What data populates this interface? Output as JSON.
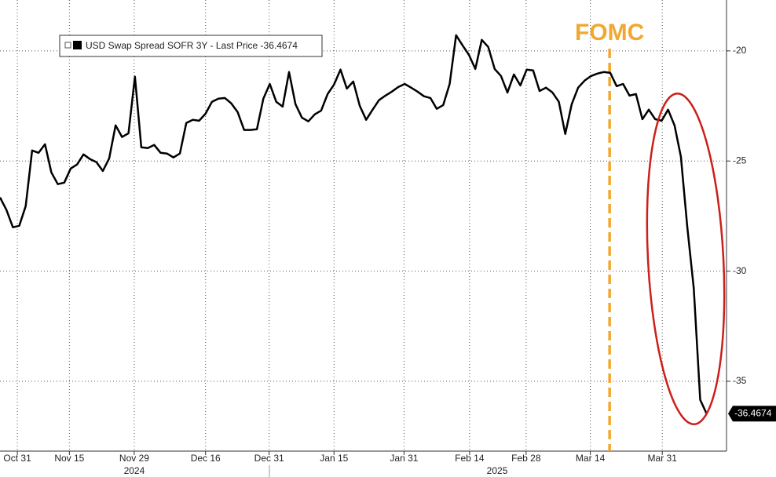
{
  "chart_data": {
    "type": "line",
    "series": [
      {
        "name": "USD Swap Spread SOFR 3Y - Last Price -36.4674",
        "color": "#000000",
        "values": [
          -26.65,
          -27.22,
          -28.01,
          -27.94,
          -27.05,
          -24.52,
          -24.63,
          -24.24,
          -25.52,
          -26.05,
          -25.98,
          -25.34,
          -25.16,
          -24.7,
          -24.91,
          -25.05,
          -25.45,
          -24.88,
          -23.38,
          -23.91,
          -23.74,
          -21.17,
          -24.38,
          -24.41,
          -24.27,
          -24.63,
          -24.66,
          -24.84,
          -24.66,
          -23.27,
          -23.13,
          -23.17,
          -22.85,
          -22.31,
          -22.17,
          -22.14,
          -22.38,
          -22.78,
          -23.59,
          -23.59,
          -23.56,
          -22.17,
          -21.5,
          -22.31,
          -22.53,
          -20.96,
          -22.42,
          -23.03,
          -23.2,
          -22.88,
          -22.71,
          -21.96,
          -21.53,
          -20.85,
          -21.71,
          -21.39,
          -22.49,
          -23.13,
          -22.67,
          -22.24,
          -22.03,
          -21.85,
          -21.64,
          -21.5,
          -21.67,
          -21.85,
          -22.06,
          -22.14,
          -22.63,
          -22.46,
          -21.5,
          -19.29,
          -19.75,
          -20.18,
          -20.82,
          -19.5,
          -19.82,
          -20.82,
          -21.14,
          -21.89,
          -21.07,
          -21.57,
          -20.85,
          -20.89,
          -21.82,
          -21.67,
          -21.89,
          -22.31,
          -23.77,
          -22.42,
          -21.67,
          -21.35,
          -21.14,
          -21.03,
          -20.96,
          -21.0,
          -21.6,
          -21.5,
          -22.03,
          -21.96,
          -23.1,
          -22.67,
          -23.1,
          -23.17,
          -22.67,
          -23.38,
          -24.8,
          -28.01,
          -30.78,
          -35.84,
          -36.4674
        ]
      }
    ],
    "xlim": [
      0,
      113.1
    ],
    "xticks": [
      {
        "value": 2.7,
        "label": "Oct 31"
      },
      {
        "value": 10.8,
        "label": "Nov 15"
      },
      {
        "value": 20.9,
        "label": "Nov 29"
      },
      {
        "value": 32.0,
        "label": "Dec 16"
      },
      {
        "value": 41.9,
        "label": "Dec 31"
      },
      {
        "value": 52.0,
        "label": "Jan 15"
      },
      {
        "value": 62.9,
        "label": "Jan 31"
      },
      {
        "value": 73.1,
        "label": "Feb 14"
      },
      {
        "value": 81.9,
        "label": "Feb 28"
      },
      {
        "value": 91.9,
        "label": "Mar 14"
      },
      {
        "value": 103.1,
        "label": "Mar 31"
      }
    ],
    "x_group_labels": [
      {
        "value": 20.9,
        "label": "2024"
      },
      {
        "value": 77.4,
        "label": "2025"
      }
    ],
    "ylim": [
      -38.17,
      -17.69
    ],
    "yticks": [
      -20,
      -25,
      -30,
      -35
    ],
    "grid": true,
    "annotations": [
      {
        "text": "FOMC",
        "x": 94.9,
        "color": "#f0a830"
      }
    ]
  }
}
